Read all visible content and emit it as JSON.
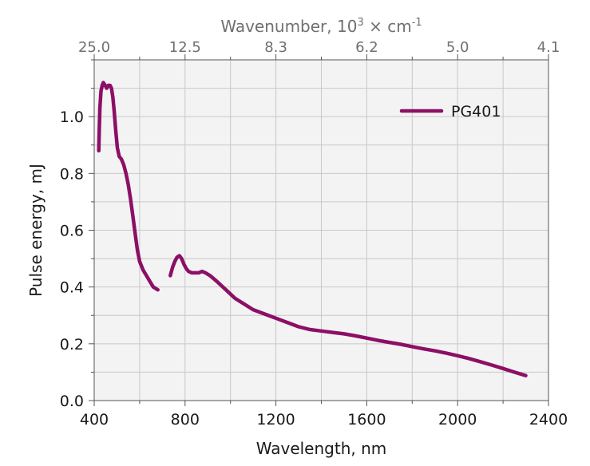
{
  "chart_data": {
    "type": "line",
    "xlabel": "Wavelength, nm",
    "ylabel": "Pulse energy, mJ",
    "top_axis": {
      "label_main": "Wavenumber, 10",
      "label_sup1": "3",
      "label_mid": " × cm",
      "label_sup2": "-1",
      "ticks": [
        {
          "label": "25.0",
          "x": 400
        },
        {
          "label": "12.5",
          "x": 800
        },
        {
          "label": "8.3",
          "x": 1200
        },
        {
          "label": "6.2",
          "x": 1600
        },
        {
          "label": "5.0",
          "x": 2000
        },
        {
          "label": "4.1",
          "x": 2400
        }
      ]
    },
    "xlim": [
      400,
      2400
    ],
    "ylim": [
      0.0,
      1.2
    ],
    "x_ticks": [
      400,
      800,
      1200,
      1600,
      2000,
      2400
    ],
    "x_tick_labels": [
      "400",
      "800",
      "1200",
      "1600",
      "2000",
      "2400"
    ],
    "x_minor_step": 200,
    "y_ticks": [
      0.0,
      0.2,
      0.4,
      0.6,
      0.8,
      1.0
    ],
    "y_tick_labels": [
      "0.0",
      "0.2",
      "0.4",
      "0.6",
      "0.8",
      "1.0"
    ],
    "y_minor_step": 0.1,
    "grid": true,
    "legend_position": "top-right",
    "colors": {
      "series": "#8c0f66",
      "plot_background": "#f3f3f3",
      "grid": "#c8c8c8",
      "axis": "#555555"
    },
    "series": [
      {
        "name": "PG401",
        "segments": [
          [
            [
              420,
              0.88
            ],
            [
              422,
              0.95
            ],
            [
              425,
              1.03
            ],
            [
              430,
              1.09
            ],
            [
              435,
              1.11
            ],
            [
              440,
              1.12
            ],
            [
              448,
              1.11
            ],
            [
              455,
              1.1
            ],
            [
              462,
              1.11
            ],
            [
              470,
              1.11
            ],
            [
              476,
              1.1
            ],
            [
              482,
              1.07
            ],
            [
              488,
              1.02
            ],
            [
              495,
              0.95
            ],
            [
              502,
              0.89
            ],
            [
              510,
              0.86
            ],
            [
              520,
              0.85
            ],
            [
              530,
              0.83
            ],
            [
              540,
              0.8
            ],
            [
              550,
              0.76
            ],
            [
              560,
              0.71
            ],
            [
              570,
              0.65
            ],
            [
              580,
              0.59
            ],
            [
              590,
              0.53
            ],
            [
              600,
              0.49
            ],
            [
              615,
              0.46
            ],
            [
              630,
              0.44
            ],
            [
              645,
              0.42
            ],
            [
              660,
              0.4
            ],
            [
              680,
              0.39
            ]
          ],
          [
            [
              735,
              0.44
            ],
            [
              745,
              0.47
            ],
            [
              755,
              0.49
            ],
            [
              765,
              0.505
            ],
            [
              775,
              0.51
            ],
            [
              785,
              0.5
            ],
            [
              795,
              0.48
            ],
            [
              805,
              0.465
            ],
            [
              815,
              0.455
            ],
            [
              830,
              0.45
            ],
            [
              845,
              0.45
            ],
            [
              860,
              0.45
            ],
            [
              875,
              0.455
            ],
            [
              890,
              0.45
            ],
            [
              910,
              0.44
            ],
            [
              940,
              0.42
            ],
            [
              980,
              0.39
            ],
            [
              1020,
              0.36
            ],
            [
              1060,
              0.34
            ],
            [
              1100,
              0.32
            ],
            [
              1150,
              0.305
            ],
            [
              1200,
              0.29
            ],
            [
              1250,
              0.275
            ],
            [
              1300,
              0.26
            ],
            [
              1350,
              0.25
            ],
            [
              1400,
              0.245
            ],
            [
              1450,
              0.24
            ],
            [
              1500,
              0.235
            ],
            [
              1550,
              0.228
            ],
            [
              1600,
              0.22
            ],
            [
              1650,
              0.212
            ],
            [
              1700,
              0.205
            ],
            [
              1750,
              0.198
            ],
            [
              1800,
              0.19
            ],
            [
              1850,
              0.182
            ],
            [
              1900,
              0.175
            ],
            [
              1950,
              0.167
            ],
            [
              2000,
              0.158
            ],
            [
              2050,
              0.148
            ],
            [
              2100,
              0.137
            ],
            [
              2150,
              0.125
            ],
            [
              2200,
              0.113
            ],
            [
              2250,
              0.1
            ],
            [
              2300,
              0.088
            ]
          ]
        ]
      }
    ]
  }
}
